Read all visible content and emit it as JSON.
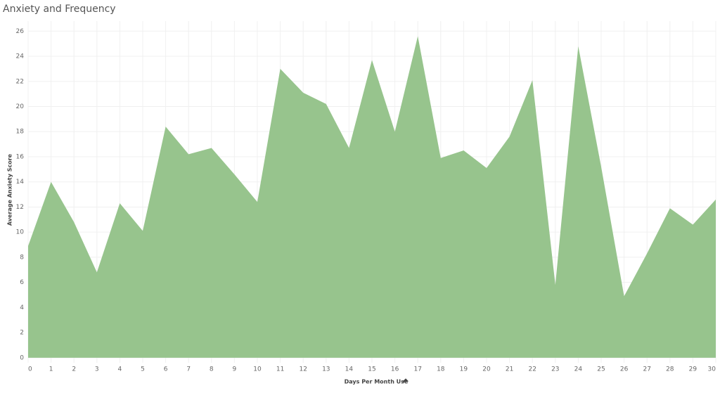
{
  "chart_data": {
    "type": "area",
    "title": "Anxiety and Frequency",
    "x_label": "Days Per Month Use",
    "y_label": "Average Anxiety Score",
    "x": [
      0,
      1,
      2,
      3,
      4,
      5,
      6,
      7,
      8,
      9,
      10,
      11,
      12,
      13,
      14,
      15,
      16,
      17,
      18,
      19,
      20,
      21,
      22,
      23,
      24,
      25,
      26,
      27,
      28,
      29,
      30
    ],
    "series": [
      {
        "name": "Average Anxiety Score",
        "color": "#97c48d",
        "values": [
          8.9,
          14.0,
          10.8,
          6.8,
          12.3,
          10.1,
          18.4,
          16.2,
          16.7,
          14.6,
          12.4,
          23.0,
          21.1,
          20.2,
          16.7,
          23.7,
          18.0,
          25.6,
          15.9,
          16.5,
          15.1,
          17.6,
          22.1,
          5.8,
          24.8,
          15.2,
          4.9,
          8.3,
          11.9,
          10.6,
          12.6
        ]
      }
    ],
    "xlim": [
      0,
      30
    ],
    "xticks": [
      0,
      1,
      2,
      3,
      4,
      5,
      6,
      7,
      8,
      9,
      10,
      11,
      12,
      13,
      14,
      15,
      16,
      17,
      18,
      19,
      20,
      21,
      22,
      23,
      24,
      25,
      26,
      27,
      28,
      29,
      30
    ],
    "ylim": [
      -0.4,
      26.8
    ],
    "yticks": [
      0,
      2,
      4,
      6,
      8,
      10,
      12,
      14,
      16,
      18,
      20,
      22,
      24,
      26
    ],
    "grid": true
  }
}
